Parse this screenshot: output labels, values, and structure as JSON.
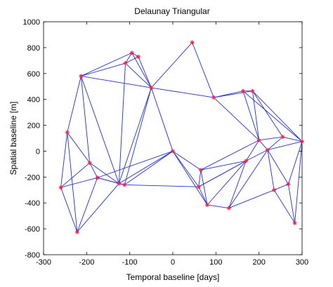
{
  "chart_data": {
    "type": "scatter",
    "title": "Delaunay Triangular",
    "xlabel": "Temporal baseline [days]",
    "ylabel": "Spatial baseline [m]",
    "xlim": [
      -300,
      300
    ],
    "ylim": [
      -800,
      1000
    ],
    "xticks": [
      "-300",
      "-200",
      "-100",
      "0",
      "100",
      "200",
      "300"
    ],
    "yticks": [
      "-800",
      "-600",
      "-400",
      "-200",
      "0",
      "200",
      "400",
      "600",
      "800",
      "1000"
    ],
    "grid": false,
    "legend": "none",
    "colors": {
      "edges": "#1f2fd6",
      "markers": "#ff1e3c",
      "axes": "#000000"
    },
    "points": [
      {
        "x": -260,
        "y": -280
      },
      {
        "x": -245,
        "y": 145
      },
      {
        "x": -222,
        "y": -625
      },
      {
        "x": -213,
        "y": 580
      },
      {
        "x": -193,
        "y": -90
      },
      {
        "x": -175,
        "y": -205
      },
      {
        "x": -125,
        "y": -250
      },
      {
        "x": -112,
        "y": -260
      },
      {
        "x": -110,
        "y": 680
      },
      {
        "x": -95,
        "y": 760
      },
      {
        "x": -80,
        "y": 730
      },
      {
        "x": -50,
        "y": 490
      },
      {
        "x": 0,
        "y": 0
      },
      {
        "x": 45,
        "y": 840
      },
      {
        "x": 60,
        "y": -275
      },
      {
        "x": 65,
        "y": -145
      },
      {
        "x": 80,
        "y": -415
      },
      {
        "x": 95,
        "y": 415
      },
      {
        "x": 130,
        "y": -440
      },
      {
        "x": 163,
        "y": 465
      },
      {
        "x": 170,
        "y": -75
      },
      {
        "x": 185,
        "y": 465
      },
      {
        "x": 200,
        "y": 85
      },
      {
        "x": 220,
        "y": 10
      },
      {
        "x": 235,
        "y": -300
      },
      {
        "x": 255,
        "y": 110
      },
      {
        "x": 268,
        "y": -255
      },
      {
        "x": 283,
        "y": -555
      },
      {
        "x": 300,
        "y": 75
      }
    ],
    "edges": [
      [
        0,
        1
      ],
      [
        0,
        2
      ],
      [
        0,
        4
      ],
      [
        0,
        5
      ],
      [
        1,
        4
      ],
      [
        1,
        3
      ],
      [
        1,
        2
      ],
      [
        2,
        5
      ],
      [
        2,
        6
      ],
      [
        4,
        5
      ],
      [
        4,
        3
      ],
      [
        4,
        6
      ],
      [
        5,
        6
      ],
      [
        5,
        7
      ],
      [
        5,
        12
      ],
      [
        6,
        3
      ],
      [
        6,
        7
      ],
      [
        6,
        8
      ],
      [
        6,
        11
      ],
      [
        6,
        12
      ],
      [
        7,
        12
      ],
      [
        7,
        14
      ],
      [
        7,
        11
      ],
      [
        3,
        8
      ],
      [
        3,
        9
      ],
      [
        3,
        11
      ],
      [
        8,
        9
      ],
      [
        8,
        10
      ],
      [
        8,
        11
      ],
      [
        9,
        10
      ],
      [
        9,
        11
      ],
      [
        10,
        11
      ],
      [
        11,
        12
      ],
      [
        11,
        13
      ],
      [
        11,
        17
      ],
      [
        12,
        14
      ],
      [
        12,
        15
      ],
      [
        12,
        16
      ],
      [
        13,
        17
      ],
      [
        17,
        19
      ],
      [
        17,
        21
      ],
      [
        17,
        22
      ],
      [
        19,
        21
      ],
      [
        19,
        22
      ],
      [
        21,
        22
      ],
      [
        21,
        25
      ],
      [
        21,
        28
      ],
      [
        22,
        25
      ],
      [
        22,
        23
      ],
      [
        22,
        20
      ],
      [
        22,
        15
      ],
      [
        14,
        15
      ],
      [
        14,
        16
      ],
      [
        15,
        16
      ],
      [
        15,
        20
      ],
      [
        16,
        18
      ],
      [
        16,
        20
      ],
      [
        18,
        20
      ],
      [
        18,
        24
      ],
      [
        18,
        23
      ],
      [
        20,
        23
      ],
      [
        20,
        14
      ],
      [
        23,
        24
      ],
      [
        23,
        25
      ],
      [
        23,
        26
      ],
      [
        23,
        28
      ],
      [
        24,
        26
      ],
      [
        24,
        27
      ],
      [
        25,
        28
      ],
      [
        26,
        28
      ],
      [
        26,
        27
      ],
      [
        27,
        28
      ],
      [
        14,
        20
      ],
      [
        19,
        28
      ]
    ]
  }
}
